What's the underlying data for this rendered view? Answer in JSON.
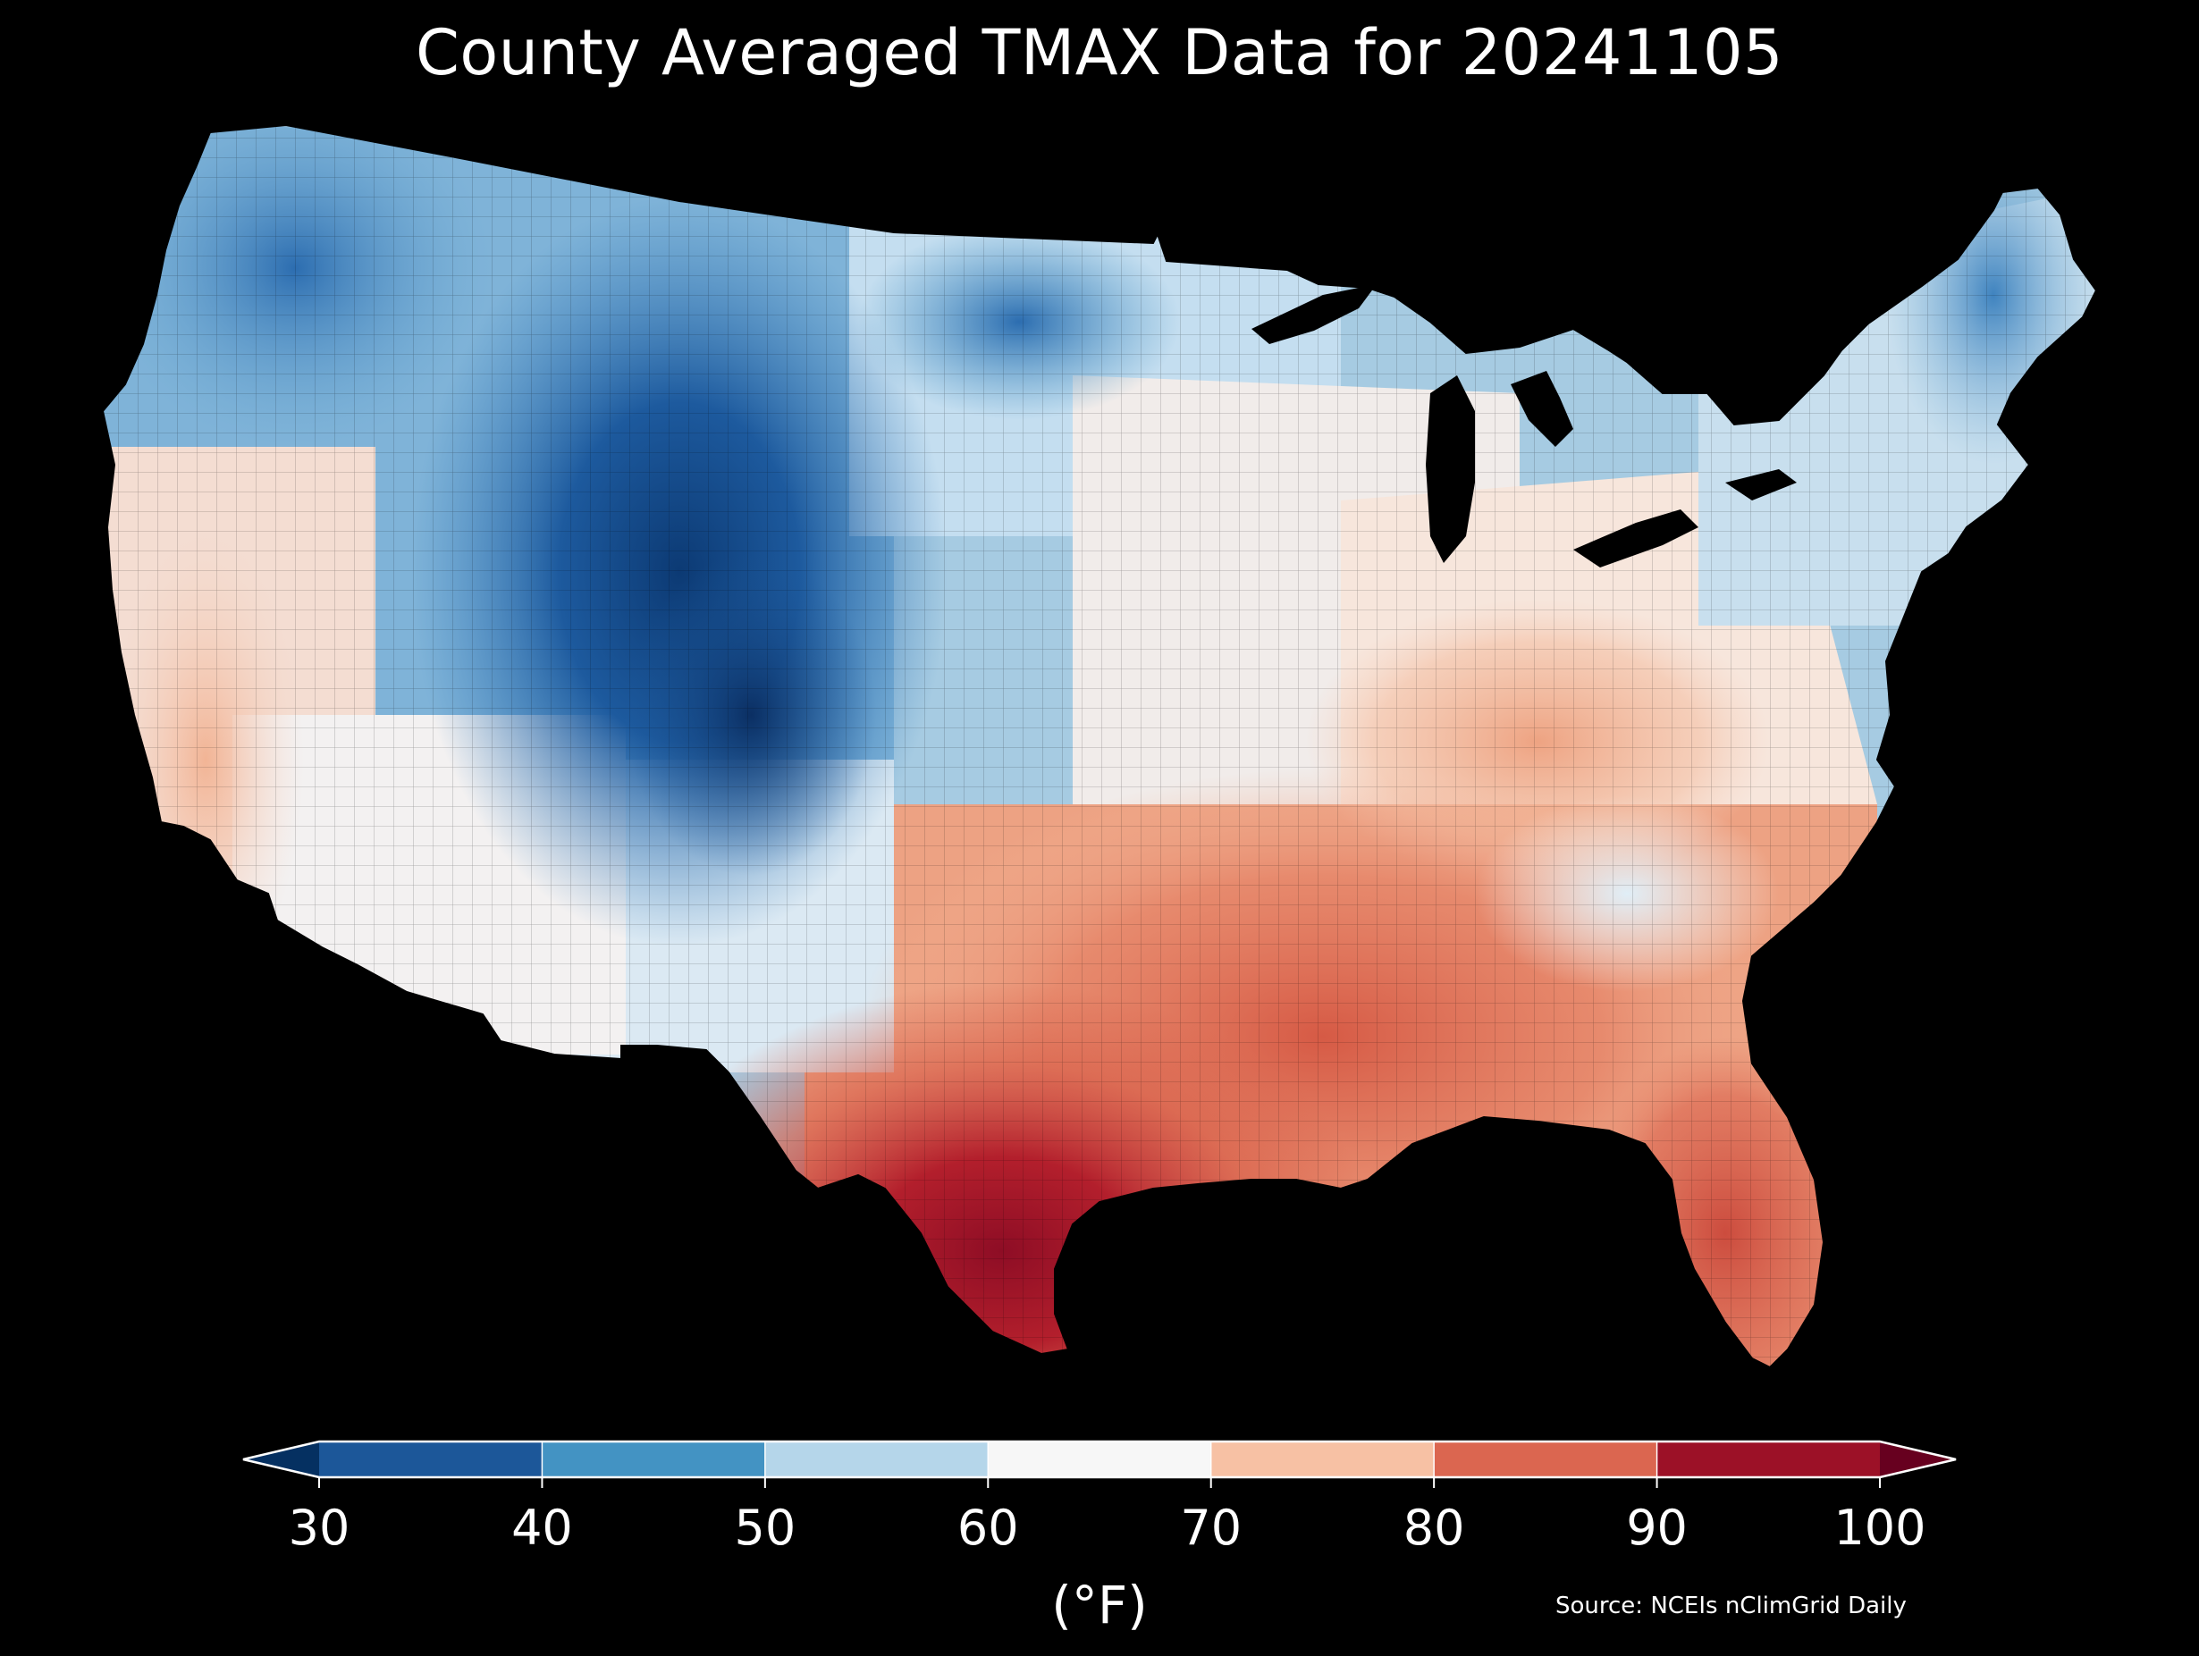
{
  "title": "County Averaged TMAX Data for 20241105",
  "source": "Source: NCEIs nClimGrid Daily",
  "colorbar": {
    "label": "(°F)",
    "ticks": [
      "30",
      "40",
      "50",
      "60",
      "70",
      "80",
      "90",
      "100"
    ],
    "bins": [
      {
        "from": 30,
        "to": 40,
        "color": "#1c5799"
      },
      {
        "from": 40,
        "to": 50,
        "color": "#4393c3"
      },
      {
        "from": 50,
        "to": 60,
        "color": "#b5d6ea"
      },
      {
        "from": 60,
        "to": 70,
        "color": "#f7f7f7"
      },
      {
        "from": 70,
        "to": 80,
        "color": "#f7c1a4"
      },
      {
        "from": 80,
        "to": 90,
        "color": "#db6650"
      },
      {
        "from": 90,
        "to": 100,
        "color": "#9c1127"
      }
    ],
    "under_color": "#053061",
    "over_color": "#67001f",
    "extend": "both"
  },
  "map": {
    "region": "Contiguous United States",
    "unit": "°F",
    "variable": "TMAX",
    "date": "20241105",
    "background": "#000000",
    "border_color": "#000000"
  }
}
